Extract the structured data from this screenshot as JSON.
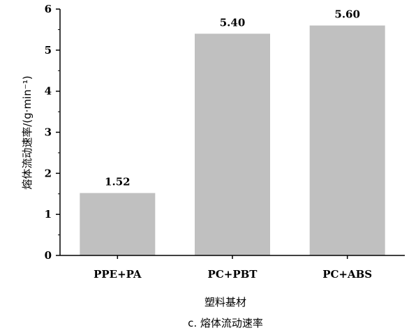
{
  "chart_data": {
    "type": "bar",
    "categories": [
      "PPE+PA",
      "PC+PBT",
      "PC+ABS"
    ],
    "values": [
      1.52,
      5.4,
      5.6
    ],
    "data_labels": [
      "1.52",
      "5.40",
      "5.60"
    ],
    "xlabel": "塑料基材",
    "ylabel": "熔体流动速率/(g·min⁻¹)",
    "caption": "c. 熔体流动速率",
    "ylim": [
      0,
      6
    ],
    "yticks": [
      0,
      1,
      2,
      3,
      4,
      5,
      6
    ],
    "grid": false,
    "bar_color": "#c0c0c0"
  }
}
